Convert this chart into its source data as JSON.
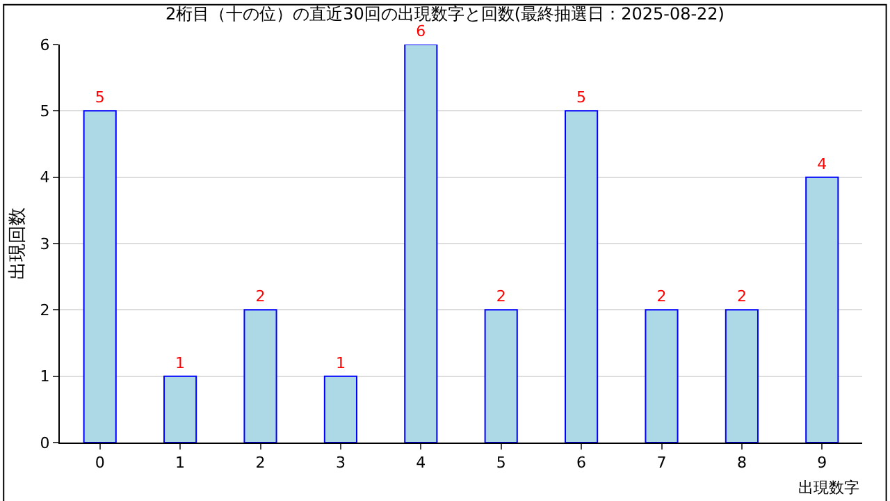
{
  "chart_data": {
    "type": "bar",
    "title": "2桁目（十の位）の直近30回の出現数字と回数(最終抽選日：2025-08-22)",
    "xlabel": "出現数字",
    "ylabel": "出現回数",
    "categories": [
      "0",
      "1",
      "2",
      "3",
      "4",
      "5",
      "6",
      "7",
      "8",
      "9"
    ],
    "values": [
      5,
      1,
      2,
      1,
      6,
      2,
      5,
      2,
      2,
      4
    ],
    "color": "#add8e6",
    "ylim": [
      0,
      6
    ],
    "yticks": [
      0,
      1,
      2,
      3,
      4,
      5,
      6
    ],
    "grid": "y",
    "data_labels": true,
    "legend": false
  }
}
